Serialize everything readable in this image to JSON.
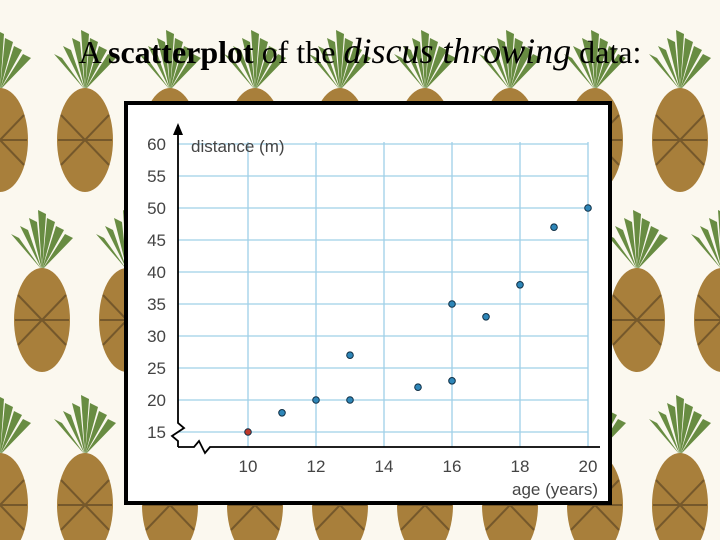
{
  "slide": {
    "title_pre": "A ",
    "title_bold": "scatterplot",
    "title_mid": " of the ",
    "title_italic": "discus throwing",
    "title_post": " data:"
  },
  "colors": {
    "point": "#2e86b8",
    "point_outline": "#0f2e44",
    "highlight": "#c0392b",
    "grid": "#9fd0e8",
    "axis": "#000000",
    "background": "#fbf8ef",
    "pineapple_body": "#9a6a1c",
    "pineapple_leaf": "#4f7a24"
  },
  "chart_data": {
    "type": "scatter",
    "title": "",
    "xlabel": "age (years)",
    "ylabel": "distance (m)",
    "xlim": [
      8,
      20
    ],
    "ylim": [
      10,
      60
    ],
    "x_ticks": [
      10,
      12,
      14,
      16,
      18,
      20
    ],
    "y_ticks": [
      15,
      20,
      25,
      30,
      35,
      40,
      45,
      50,
      55,
      60
    ],
    "grid": true,
    "axis_breaks": [
      "x",
      "y"
    ],
    "points": [
      {
        "x": 10,
        "y": 15,
        "highlight": true
      },
      {
        "x": 11,
        "y": 18
      },
      {
        "x": 12,
        "y": 20
      },
      {
        "x": 13,
        "y": 20
      },
      {
        "x": 13,
        "y": 27
      },
      {
        "x": 15,
        "y": 22
      },
      {
        "x": 16,
        "y": 23
      },
      {
        "x": 16,
        "y": 35
      },
      {
        "x": 17,
        "y": 33
      },
      {
        "x": 18,
        "y": 38
      },
      {
        "x": 19,
        "y": 47
      },
      {
        "x": 20,
        "y": 50
      }
    ]
  }
}
